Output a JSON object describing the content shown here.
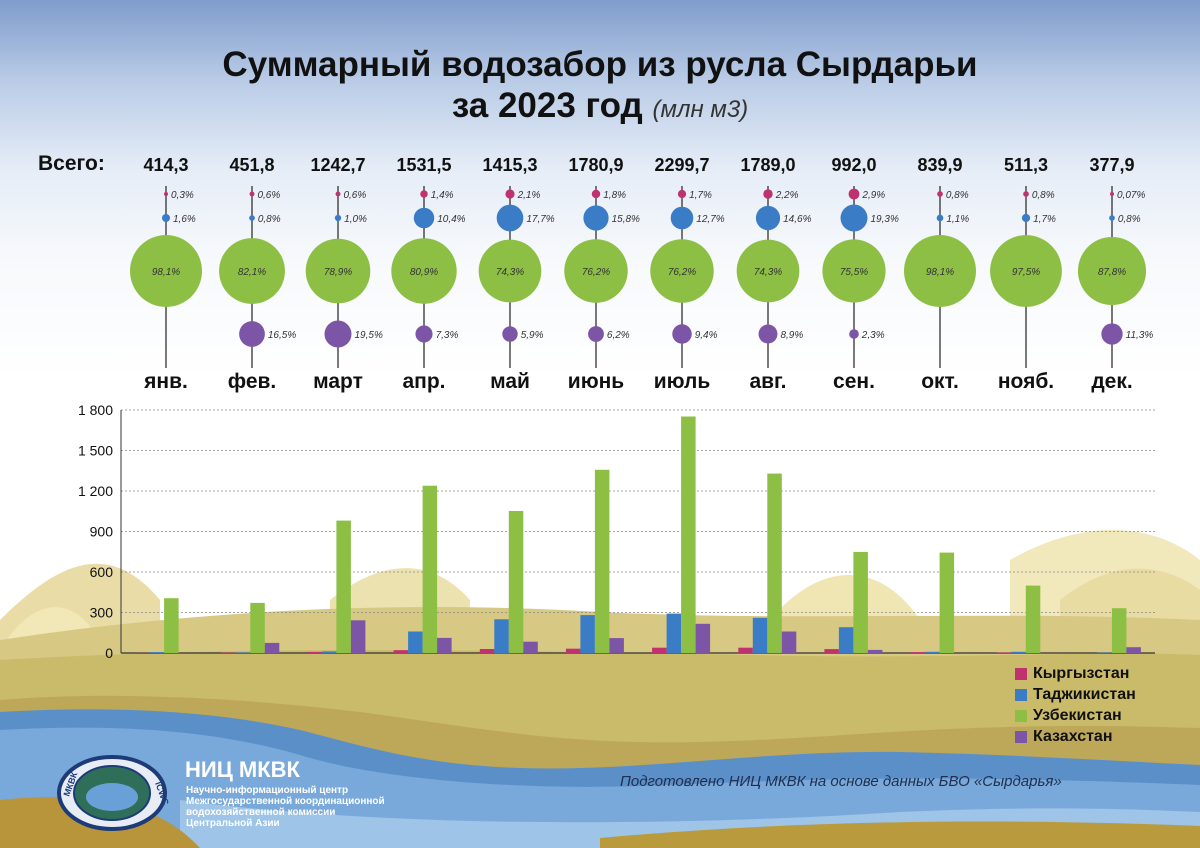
{
  "title": "Суммарный водозабор из русла Сырдарьи",
  "title_year": "за 2023 год",
  "title_unit": "(млн м3)",
  "total_label": "Всего:",
  "legend_title": "",
  "colors": {
    "kg": "#c0316f",
    "tj": "#3a7cc5",
    "uz": "#8dbf45",
    "kz": "#7d55a6"
  },
  "chart_data": [
    {
      "type": "bubble-share",
      "categories": [
        "янв.",
        "фев.",
        "март",
        "апр.",
        "май",
        "июнь",
        "июль",
        "авг.",
        "сен.",
        "окт.",
        "нояб.",
        "дек."
      ],
      "totals": [
        "414,3",
        "451,8",
        "1242,7",
        "1531,5",
        "1415,3",
        "1780,9",
        "2299,7",
        "1789,0",
        "992,0",
        "839,9",
        "511,3",
        "377,9"
      ],
      "shares": {
        "kg": [
          0.3,
          0.6,
          0.6,
          1.4,
          2.1,
          1.8,
          1.7,
          2.2,
          2.9,
          0.8,
          0.8,
          0.07
        ],
        "tj": [
          1.6,
          0.8,
          1.0,
          10.4,
          17.7,
          15.8,
          12.7,
          14.6,
          19.3,
          1.1,
          1.7,
          0.8
        ],
        "uz": [
          98.1,
          82.1,
          78.9,
          80.9,
          74.3,
          76.2,
          76.2,
          74.3,
          75.5,
          98.1,
          97.5,
          87.8
        ],
        "kz": [
          null,
          16.5,
          19.5,
          7.3,
          5.9,
          6.2,
          9.4,
          8.9,
          2.3,
          null,
          null,
          11.3
        ]
      },
      "share_labels": {
        "kg": [
          "0,3%",
          "0,6%",
          "0,6%",
          "1,4%",
          "2,1%",
          "1,8%",
          "1,7%",
          "2,2%",
          "2,9%",
          "0,8%",
          "0,8%",
          "0,07%"
        ],
        "tj": [
          "1,6%",
          "0,8%",
          "1,0%",
          "10,4%",
          "17,7%",
          "15,8%",
          "12,7%",
          "14,6%",
          "19,3%",
          "1,1%",
          "1,7%",
          "0,8%"
        ],
        "uz": [
          "98,1%",
          "82,1%",
          "78,9%",
          "80,9%",
          "74,3%",
          "76,2%",
          "76,2%",
          "74,3%",
          "75,5%",
          "98,1%",
          "97,5%",
          "87,8%"
        ],
        "kz": [
          null,
          "16,5%",
          "19,5%",
          "7,3%",
          "5,9%",
          "6,2%",
          "9,4%",
          "8,9%",
          "2,3%",
          null,
          null,
          "11,3%"
        ]
      }
    },
    {
      "type": "bar",
      "categories": [
        "янв.",
        "фев.",
        "март",
        "апр.",
        "май",
        "июнь",
        "июль",
        "авг.",
        "сен.",
        "окт.",
        "нояб.",
        "дек."
      ],
      "series": [
        {
          "key": "kg",
          "name": "Кыргызстан",
          "values": [
            1,
            3,
            8,
            21,
            30,
            32,
            39,
            39,
            29,
            7,
            4,
            0
          ]
        },
        {
          "key": "tj",
          "name": "Таджикистан",
          "values": [
            7,
            4,
            12,
            159,
            250,
            281,
            292,
            261,
            191,
            9,
            9,
            3
          ]
        },
        {
          "key": "uz",
          "name": "Узбекистан",
          "values": [
            406,
            371,
            981,
            1239,
            1052,
            1357,
            1752,
            1329,
            749,
            744,
            499,
            332
          ]
        },
        {
          "key": "kz",
          "name": "Казахстан",
          "values": [
            0,
            75,
            242,
            112,
            84,
            110,
            216,
            159,
            23,
            0,
            0,
            43
          ]
        }
      ],
      "yticks": [
        "0",
        "300",
        "600",
        "900",
        "1 200",
        "1 500",
        "1 800"
      ],
      "ylim": [
        0,
        1800
      ]
    }
  ],
  "org": {
    "name": "НИЦ МКВК",
    "description": "Научно-информационный центр Межгосударственной координационной водохозяйственной комиссии Центральной Азии",
    "logo_text_left": "МКВК",
    "logo_text_right": "ICWC"
  },
  "credit": "Подготовлено НИЦ МКВК на основе данных БВО «Сырдарья»"
}
